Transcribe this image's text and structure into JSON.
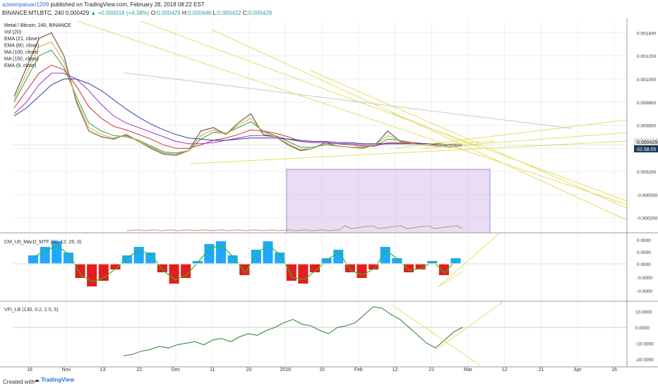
{
  "header": {
    "author": "azeampatuan1209",
    "published": "published on TradingView.com, February 28, 2018 08:22 EST",
    "symbol": "BINANCE:MTLBTC, 240",
    "last": "0.000429",
    "change": "+0.000018 (+4.38%)",
    "o_label": "O:",
    "o": "0.000429",
    "h_label": "H:",
    "h": "0.000448",
    "l_label": "L:",
    "l": "0.000422",
    "c_label": "C:",
    "c": "0.000429"
  },
  "legend": [
    "Metal / Bitcoin, 240, BINANCE",
    "Vol (20)",
    "EMA (21, close)",
    "EMA (60, close)",
    "MA (100, close)",
    "MA (150, close)",
    "EMA (9, close)"
  ],
  "panes": {
    "macd_label": "CM_Ult_MacD_MTF (60, 12, 26, 9)",
    "vfi_label": "VFI_LB (130, 0.2, 2.5, 5)"
  },
  "footer": {
    "created": "Created with",
    "brand": "TradingView"
  },
  "colors": {
    "price": "#6d5f3a",
    "ema21": "#2e9d3f",
    "ema60": "#cc3333",
    "ma100": "#a030c8",
    "ma150": "#2a3f9e",
    "ema9": "#d8a040",
    "trend": "#e0e060",
    "white_line": "#c8c8c8",
    "macd_pos": "#1ea8ff",
    "macd_neg": "#e61c1c",
    "macd_fast": "#22c122",
    "vfi": "#2f7a2f",
    "volume": "#c89070",
    "box": "#cdb4e6",
    "price_tag": "#e0e0e0"
  },
  "chart_data": [
    {
      "type": "line",
      "title": "Metal / Bitcoin, 240, BINANCE",
      "x_ticks": [
        "16",
        "Nov",
        "13",
        "22",
        "Dec",
        "11",
        "20",
        "2018",
        "15",
        "Feb",
        "12",
        "21",
        "Mar",
        "12",
        "21",
        "Apr",
        "16"
      ],
      "y_ticks": [
        "0.001400",
        "0.001200",
        "0.001000",
        "0.000800",
        "0.000600",
        "0.000400",
        "0.000200",
        "-0.000000",
        "-0.000200"
      ],
      "price_label": "0.000429",
      "countdown": "02:38:05",
      "series": [
        {
          "name": "Metal / Bitcoin",
          "values": [
            0.00085,
            0.0011,
            0.00135,
            0.0014,
            0.0012,
            0.0008,
            0.00055,
            0.0005,
            0.00048,
            0.00052,
            0.00046,
            0.0004,
            0.00035,
            0.00034,
            0.00038,
            0.00055,
            0.00058,
            0.00052,
            0.00062,
            0.0007,
            0.00052,
            0.0005,
            0.00043,
            0.00038,
            0.0004,
            0.00045,
            0.00042,
            0.00041,
            0.0004,
            0.00043,
            0.00055,
            0.00046,
            0.00044,
            0.00043,
            0.00042,
            0.00041,
            0.00043
          ]
        },
        {
          "name": "EMA (21, close)",
          "values": [
            0.0008,
            0.001,
            0.0012,
            0.00125,
            0.0011,
            0.00085,
            0.00062,
            0.00055,
            0.00051,
            0.0005,
            0.00047,
            0.00042,
            0.00037,
            0.00036,
            0.00038,
            0.00048,
            0.00054,
            0.00053,
            0.00058,
            0.00063,
            0.00055,
            0.00051,
            0.00046,
            0.00041,
            0.00041,
            0.00043,
            0.00042,
            0.00041,
            0.00041,
            0.00042,
            0.00048,
            0.00047,
            0.00045,
            0.00044,
            0.00043,
            0.00042,
            0.00042
          ]
        },
        {
          "name": "EMA (60, close)",
          "values": [
            0.00075,
            0.0009,
            0.00105,
            0.00112,
            0.00108,
            0.00094,
            0.00076,
            0.00066,
            0.00059,
            0.00056,
            0.00052,
            0.00048,
            0.00043,
            0.0004,
            0.0004,
            0.00043,
            0.00047,
            0.00049,
            0.00052,
            0.00056,
            0.00055,
            0.00053,
            0.0005,
            0.00046,
            0.00045,
            0.00045,
            0.00044,
            0.00043,
            0.00042,
            0.00042,
            0.00045,
            0.00045,
            0.00045,
            0.00044,
            0.00044,
            0.00043,
            0.00043
          ]
        },
        {
          "name": "MA (100, close)",
          "values": [
            0.0007,
            0.0008,
            0.00095,
            0.00105,
            0.00105,
            0.001,
            0.0009,
            0.00078,
            0.00068,
            0.00062,
            0.00058,
            0.00054,
            0.0005,
            0.00046,
            0.00044,
            0.00044,
            0.00045,
            0.00047,
            0.00049,
            0.00051,
            0.00051,
            0.0005,
            0.00048,
            0.00046,
            0.00045,
            0.00045,
            0.00044,
            0.00044,
            0.00043,
            0.00043,
            0.00044,
            0.00044,
            0.00044,
            0.00044,
            0.00043,
            0.00043,
            0.00043
          ]
        },
        {
          "name": "MA (150, close)",
          "values": [
            0.00068,
            0.00075,
            0.00085,
            0.00095,
            0.001,
            0.001,
            0.00096,
            0.0009,
            0.00082,
            0.00074,
            0.00067,
            0.00061,
            0.00056,
            0.00052,
            0.00049,
            0.00048,
            0.00047,
            0.00047,
            0.00048,
            0.00049,
            0.00049,
            0.00049,
            0.00048,
            0.00047,
            0.00046,
            0.00046,
            0.00045,
            0.00045,
            0.00044,
            0.00044,
            0.00044,
            0.00044,
            0.00044,
            0.00044,
            0.00044,
            0.00043,
            0.00043
          ]
        },
        {
          "name": "EMA (9, close)",
          "values": [
            0.00082,
            0.00105,
            0.00128,
            0.00132,
            0.00115,
            0.00082,
            0.00058,
            0.00052,
            0.00049,
            0.00051,
            0.00046,
            0.00041,
            0.00036,
            0.00035,
            0.00038,
            0.00051,
            0.00056,
            0.00052,
            0.0006,
            0.00066,
            0.00054,
            0.0005,
            0.00044,
            0.00039,
            0.0004,
            0.00044,
            0.00042,
            0.00041,
            0.0004,
            0.00043,
            0.00051,
            0.00047,
            0.00044,
            0.00043,
            0.00042,
            0.00041,
            0.00042
          ]
        }
      ]
    },
    {
      "type": "bar",
      "title": "CM_Ult_MacD_MTF (60, 12, 26, 9)",
      "y_ticks": [
        "0.0000",
        "0.0000",
        "0.0000",
        "-0.0000",
        "-0.0000"
      ],
      "series": [
        {
          "name": "histogram",
          "values": [
            0.3,
            0.6,
            0.8,
            0.4,
            -0.5,
            -0.8,
            -0.6,
            -0.2,
            0.3,
            0.6,
            0.4,
            -0.3,
            -0.7,
            -0.5,
            0.1,
            0.7,
            0.8,
            0.3,
            -0.4,
            0.5,
            0.8,
            0.4,
            -0.6,
            -0.7,
            -0.3,
            0.2,
            0.5,
            -0.3,
            -0.5,
            -0.2,
            0.6,
            0.2,
            -0.3,
            -0.2,
            0.1,
            -0.4,
            0.2
          ]
        }
      ]
    },
    {
      "type": "line",
      "title": "VFI_LB (130, 0.2, 2.5, 5)",
      "y_ticks": [
        "10.0000",
        "0.0000",
        "-10.0000",
        "-20.0000"
      ],
      "ylim": [
        -24,
        16
      ],
      "series": [
        {
          "name": "VFI_LB",
          "values": [
            -18,
            -17,
            -15,
            -14,
            -12,
            -13,
            -11,
            -10,
            -9,
            -11,
            -8,
            -7,
            -9,
            -6,
            -4,
            -5,
            -2,
            0,
            3,
            5,
            2,
            1,
            -2,
            -4,
            0,
            1,
            3,
            8,
            13,
            12,
            8,
            5,
            0,
            -5,
            -10,
            -13,
            -8,
            -3,
            0
          ]
        }
      ]
    }
  ]
}
